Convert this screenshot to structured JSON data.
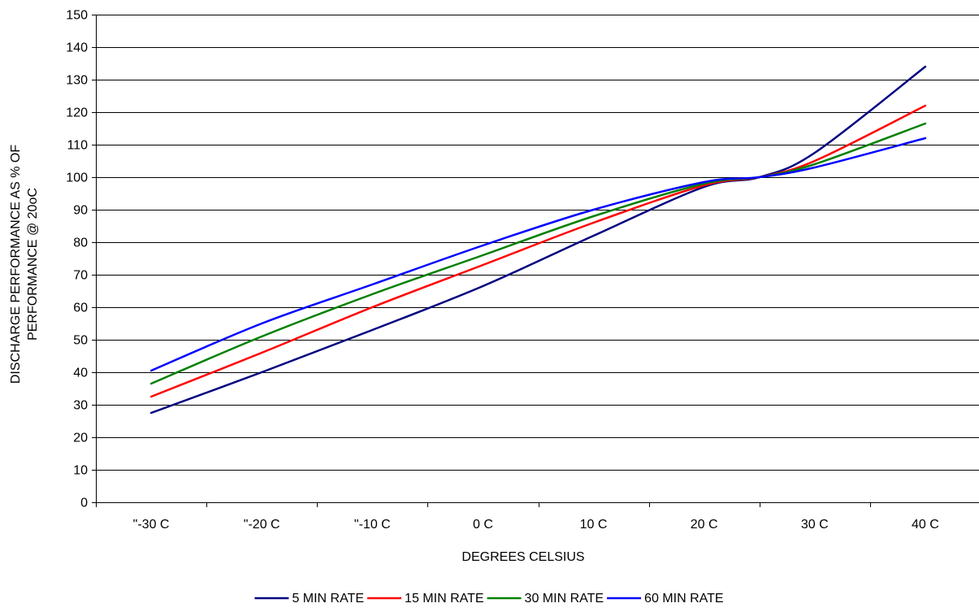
{
  "chart_data": {
    "type": "line",
    "title": "",
    "xlabel": "DEGREES CELSIUS",
    "ylabel": "DISCHARGE PERFORMANCE AS % OF PERFORMANCE @ 20oC",
    "ylabel_lines": [
      "DISCHARGE PERFORMANCE AS % OF",
      "PERFORMANCE @ 20oC"
    ],
    "categories": [
      "\"-30 C",
      "\"-20 C",
      "\"-10 C",
      "0 C",
      "10 C",
      "20 C",
      "30 C",
      "40 C"
    ],
    "x_values": [
      -30,
      -20,
      -10,
      0,
      10,
      20,
      30,
      40
    ],
    "ylim": [
      0,
      150
    ],
    "y_ticks": [
      0,
      10,
      20,
      30,
      40,
      50,
      60,
      70,
      80,
      90,
      100,
      110,
      120,
      130,
      140,
      150
    ],
    "grid": "horizontal",
    "legend_position": "bottom",
    "series": [
      {
        "name": "5 MIN RATE",
        "color": "#000080",
        "x": [
          -30,
          -20,
          -10,
          0,
          10,
          20,
          25,
          30,
          40
        ],
        "y": [
          27.5,
          40,
          53,
          66.5,
          82,
          97,
          100,
          107.5,
          134
        ]
      },
      {
        "name": "15 MIN RATE",
        "color": "#ff0000",
        "x": [
          -30,
          -20,
          -10,
          0,
          10,
          20,
          25,
          30,
          40
        ],
        "y": [
          32.5,
          46,
          60,
          73,
          86,
          97.5,
          100,
          105,
          122
        ]
      },
      {
        "name": "30 MIN RATE",
        "color": "#008000",
        "x": [
          -30,
          -20,
          -10,
          0,
          10,
          20,
          25,
          30,
          40
        ],
        "y": [
          36.5,
          51,
          64,
          76,
          88,
          98,
          100,
          104,
          116.5
        ]
      },
      {
        "name": "60 MIN RATE",
        "color": "#0000ff",
        "x": [
          -30,
          -20,
          -10,
          0,
          10,
          20,
          25,
          30,
          40
        ],
        "y": [
          40.5,
          55,
          67,
          79,
          90,
          98.5,
          100,
          103,
          112
        ]
      }
    ]
  }
}
